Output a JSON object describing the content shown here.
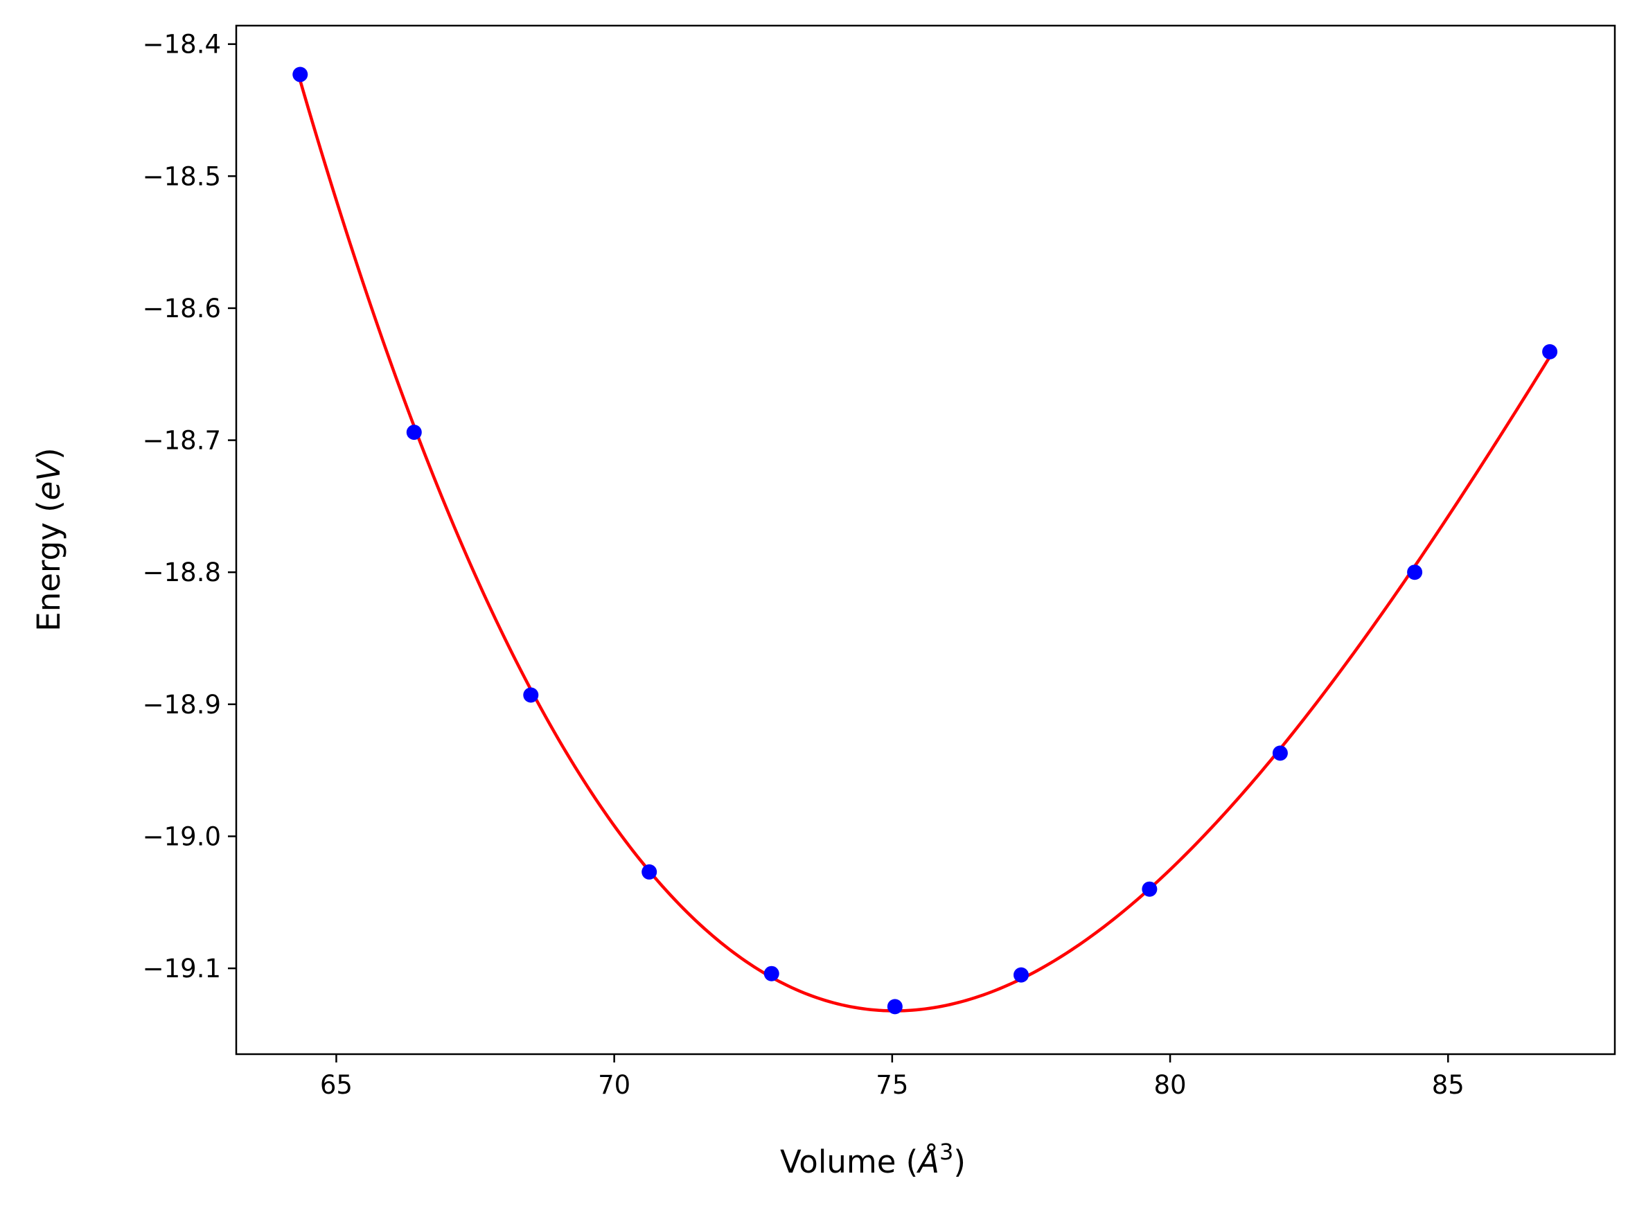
{
  "chart_data": {
    "type": "line",
    "xlabel": {
      "prefix": "Volume (",
      "var": "Å",
      "sup": "3",
      "suffix": ")"
    },
    "ylabel": {
      "prefix": "Energy (",
      "var": "eV",
      "suffix": ")"
    },
    "xlim": [
      63.2,
      88.0
    ],
    "ylim": [
      -19.165,
      -18.386
    ],
    "x_ticks": [
      65,
      70,
      75,
      80,
      85
    ],
    "x_tick_labels": [
      "65",
      "70",
      "75",
      "80",
      "85"
    ],
    "y_ticks": [
      -18.4,
      -18.5,
      -18.6,
      -18.7,
      -18.8,
      -18.9,
      -19.0,
      -19.1
    ],
    "y_tick_labels": [
      "−18.4",
      "−18.5",
      "−18.6",
      "−18.7",
      "−18.8",
      "−18.9",
      "−19.0",
      "−19.1"
    ],
    "grid": false,
    "series": [
      {
        "kind": "scatter",
        "color": "#0000ff",
        "x": [
          64.35,
          66.4,
          68.5,
          70.63,
          72.83,
          75.05,
          77.32,
          79.63,
          81.98,
          84.4,
          86.83
        ],
        "y": [
          -18.423,
          -18.694,
          -18.893,
          -19.027,
          -19.104,
          -19.129,
          -19.105,
          -19.04,
          -18.937,
          -18.8,
          -18.633
        ]
      },
      {
        "kind": "fit-curve",
        "color": "#ff0000",
        "x": [
          64.35,
          66.4,
          68.5,
          70.63,
          72.83,
          75.05,
          77.32,
          79.63,
          81.98,
          84.4,
          86.83
        ],
        "y": [
          -18.423,
          -18.694,
          -18.893,
          -19.027,
          -19.104,
          -19.129,
          -19.105,
          -19.04,
          -18.937,
          -18.8,
          -18.633
        ]
      }
    ]
  }
}
